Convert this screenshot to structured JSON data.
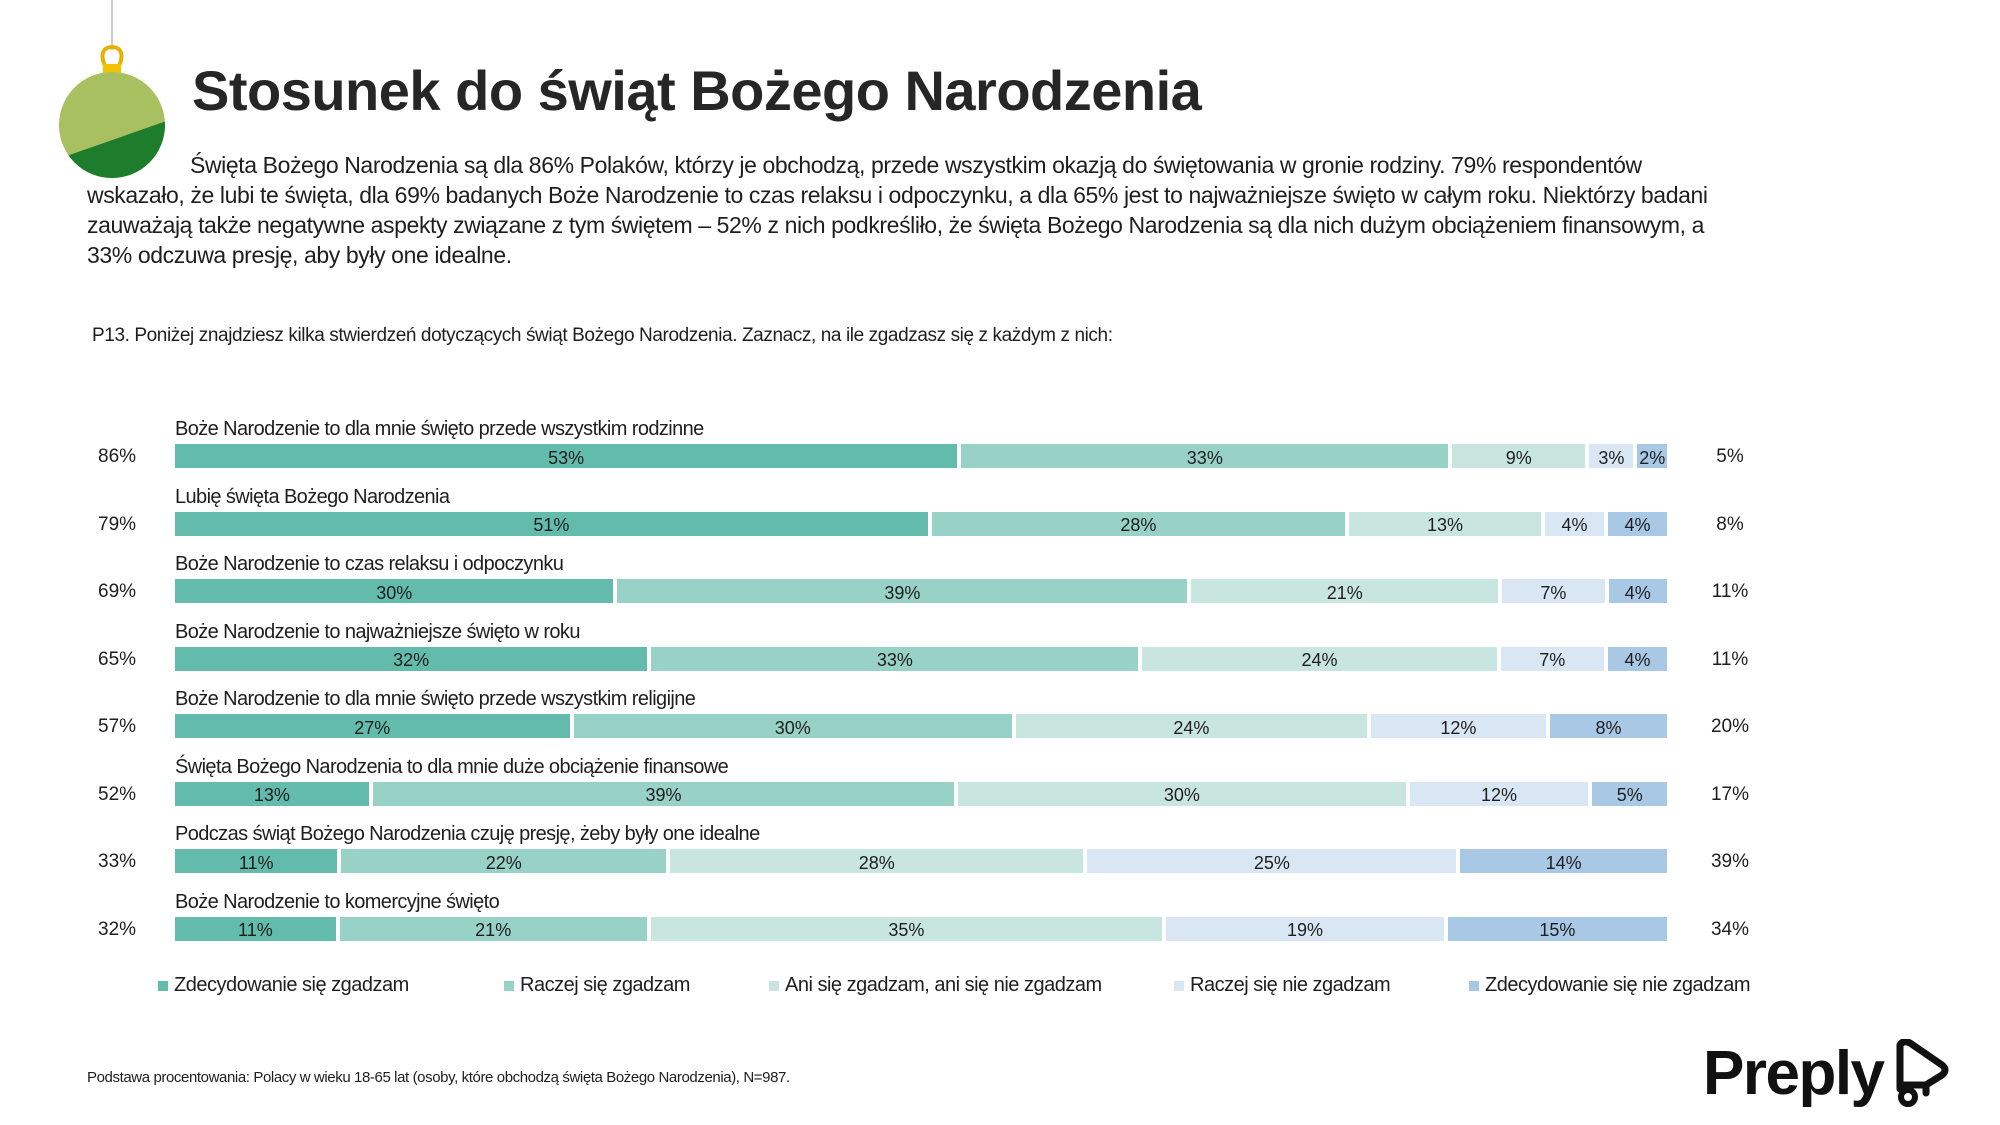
{
  "title": "Stosunek do świąt Bożego Narodzenia",
  "intro": "Święta Bożego Narodzenia są dla 86% Polaków, którzy je obchodzą, przede wszystkim okazją do świętowania w gronie rodziny. 79% respondentów wskazało, że lubi te święta, dla 69% badanych Boże Narodzenie to czas relaksu i odpoczynku, a dla 65% jest to najważniejsze święto w całym roku. Niektórzy badani zauważają także negatywne aspekty związane z tym świętem – 52% z nich podkreśliło, że święta Bożego Narodzenia są dla nich dużym obciążeniem finansowym, a 33% odczuwa presję, aby były one idealne.",
  "question": "P13. Poniżej znajdziesz kilka stwierdzeń dotyczących świąt Bożego Narodzenia. Zaznacz, na ile zgadzasz się z każdym z nich:",
  "footnote": "Podstawa procentowania: Polacy w wieku 18-65 lat (osoby, które obchodzą święta Bożego Narodzenia), N=987.",
  "logo": "Preply",
  "chart_data": {
    "type": "bar",
    "orientation": "horizontal",
    "stacked": true,
    "categories": [
      "Boże Narodzenie to dla mnie święto przede wszystkim rodzinne",
      "Lubię święta Bożego Narodzenia",
      "Boże Narodzenie to czas relaksu i odpoczynku",
      "Boże Narodzenie to najważniejsze święto w roku",
      "Boże Narodzenie to dla mnie święto przede wszystkim religijne",
      "Święta Bożego Narodzenia to dla mnie duże obciążenie finansowe",
      "Podczas świąt Bożego Narodzenia czuję presję, żeby były one idealne",
      "Boże Narodzenie to komercyjne święto"
    ],
    "agree_total": [
      "86%",
      "79%",
      "69%",
      "65%",
      "57%",
      "52%",
      "33%",
      "32%"
    ],
    "disagree_total": [
      "5%",
      "8%",
      "11%",
      "11%",
      "20%",
      "17%",
      "39%",
      "34%"
    ],
    "series": [
      {
        "name": "Zdecydowanie się zgadzam",
        "color": "#63bcab",
        "values": [
          53,
          51,
          30,
          32,
          27,
          13,
          11,
          11
        ]
      },
      {
        "name": "Raczej się zgadzam",
        "color": "#98d1c6",
        "values": [
          33,
          28,
          39,
          33,
          30,
          39,
          22,
          21
        ]
      },
      {
        "name": "Ani się zgadzam, ani się nie zgadzam",
        "color": "#c8e6df",
        "values": [
          9,
          13,
          21,
          24,
          24,
          30,
          28,
          35
        ]
      },
      {
        "name": "Raczej się nie zgadzam",
        "color": "#d9e7f4",
        "values": [
          3,
          4,
          7,
          7,
          12,
          12,
          25,
          19
        ]
      },
      {
        "name": "Zdecydowanie się  nie zgadzam",
        "color": "#a9c8e6",
        "values": [
          2,
          4,
          4,
          4,
          8,
          5,
          14,
          15
        ]
      }
    ],
    "unit": "%",
    "legend": "bottom"
  }
}
